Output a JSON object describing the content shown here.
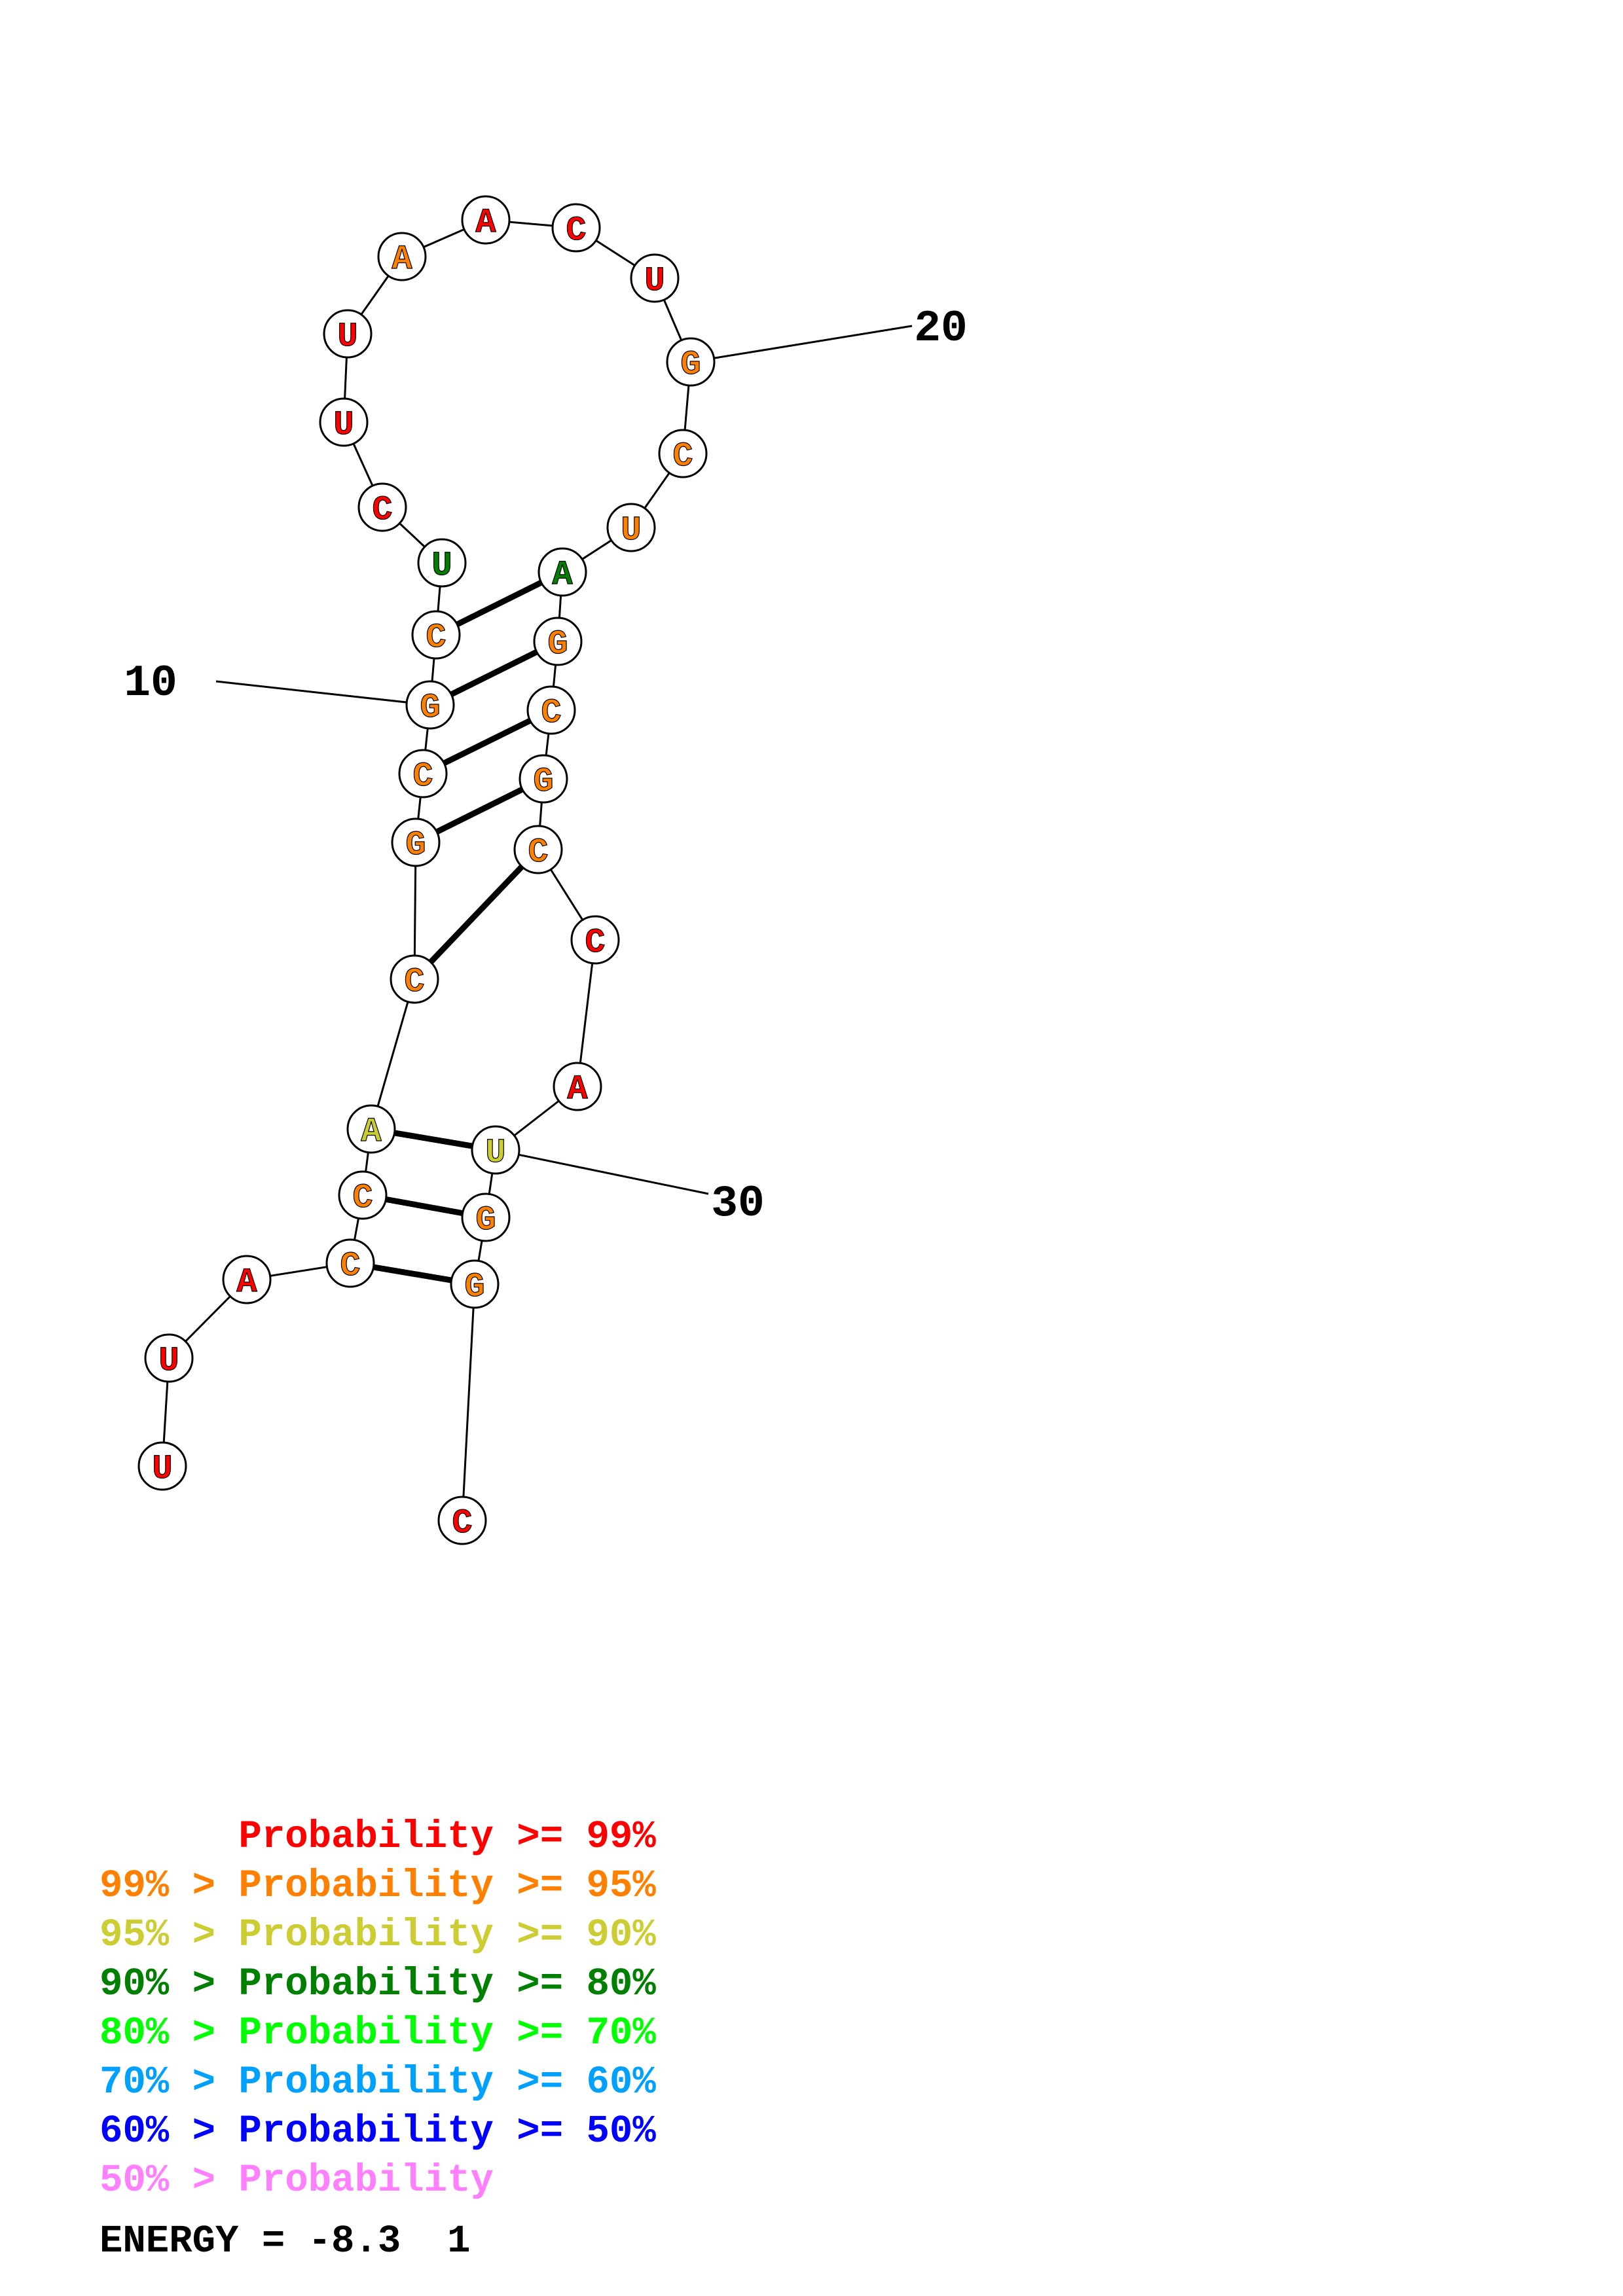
{
  "diagram": {
    "nucleotides": [
      {
        "base": "U",
        "color": "#ff0000"
      },
      {
        "base": "U",
        "color": "#ff0000"
      },
      {
        "base": "A",
        "color": "#ff0000"
      },
      {
        "base": "C",
        "color": "#ff8000"
      },
      {
        "base": "C",
        "color": "#ff8000"
      },
      {
        "base": "A",
        "color": "#cccc33"
      },
      {
        "base": "C",
        "color": "#ff8000"
      },
      {
        "base": "G",
        "color": "#ff8000"
      },
      {
        "base": "C",
        "color": "#ff8000"
      },
      {
        "base": "G",
        "color": "#ff8000"
      },
      {
        "base": "C",
        "color": "#ff8000"
      },
      {
        "base": "U",
        "color": "#008000"
      },
      {
        "base": "C",
        "color": "#ff0000"
      },
      {
        "base": "U",
        "color": "#ff0000"
      },
      {
        "base": "U",
        "color": "#ff0000"
      },
      {
        "base": "A",
        "color": "#ff8000"
      },
      {
        "base": "A",
        "color": "#ff0000"
      },
      {
        "base": "C",
        "color": "#ff0000"
      },
      {
        "base": "U",
        "color": "#ff0000"
      },
      {
        "base": "G",
        "color": "#ff8000"
      },
      {
        "base": "C",
        "color": "#ff8000"
      },
      {
        "base": "U",
        "color": "#ff8000"
      },
      {
        "base": "A",
        "color": "#008000"
      },
      {
        "base": "G",
        "color": "#ff8000"
      },
      {
        "base": "C",
        "color": "#ff8000"
      },
      {
        "base": "G",
        "color": "#ff8000"
      },
      {
        "base": "C",
        "color": "#ff8000"
      },
      {
        "base": "C",
        "color": "#ff0000"
      },
      {
        "base": "A",
        "color": "#ff0000"
      },
      {
        "base": "U",
        "color": "#cccc33"
      },
      {
        "base": "G",
        "color": "#ff8000"
      },
      {
        "base": "G",
        "color": "#ff8000"
      },
      {
        "base": "C",
        "color": "#ff0000"
      }
    ],
    "base_pairs": [
      [
        4,
        32
      ],
      [
        5,
        31
      ],
      [
        6,
        30
      ],
      [
        7,
        27
      ],
      [
        8,
        26
      ],
      [
        9,
        25
      ],
      [
        10,
        24
      ],
      [
        11,
        23
      ]
    ],
    "index_labels": [
      {
        "index": 10,
        "text": "10"
      },
      {
        "index": 20,
        "text": "20"
      },
      {
        "index": 30,
        "text": "30"
      }
    ]
  },
  "legend": [
    {
      "text": "      Probability >= 99%",
      "color": "#ff0000"
    },
    {
      "text": "99% > Probability >= 95%",
      "color": "#ff8000"
    },
    {
      "text": "95% > Probability >= 90%",
      "color": "#cccc33"
    },
    {
      "text": "90% > Probability >= 80%",
      "color": "#008000"
    },
    {
      "text": "80% > Probability >= 70%",
      "color": "#00ff00"
    },
    {
      "text": "70% > Probability >= 60%",
      "color": "#00a0ff"
    },
    {
      "text": "60% > Probability >= 50%",
      "color": "#0000ff"
    },
    {
      "text": "50% > Probability",
      "color": "#ff80ff"
    }
  ],
  "energy_text": "ENERGY = -8.3  1"
}
